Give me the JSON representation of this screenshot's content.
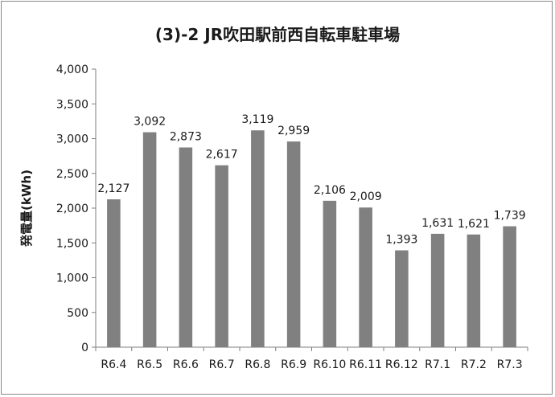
{
  "chart_data": {
    "type": "bar",
    "title": "(3)-2 JR吹田駅前西自転車駐車場",
    "ylabel": "発電量(kWh)",
    "xlabel": "",
    "categories": [
      "R6.4",
      "R6.5",
      "R6.6",
      "R6.7",
      "R6.8",
      "R6.9",
      "R6.10",
      "R6.11",
      "R6.12",
      "R7.1",
      "R7.2",
      "R7.3"
    ],
    "values": [
      2127,
      3092,
      2873,
      2617,
      3119,
      2959,
      2106,
      2009,
      1393,
      1631,
      1621,
      1739
    ],
    "data_labels": [
      "2,127",
      "3,092",
      "2,873",
      "2,617",
      "3,119",
      "2,959",
      "2,106",
      "2,009",
      "1,393",
      "1,631",
      "1,621",
      "1,739"
    ],
    "yticks": [
      0,
      500,
      1000,
      1500,
      2000,
      2500,
      3000,
      3500,
      4000
    ],
    "ytick_labels": [
      "0",
      "500",
      "1,000",
      "1,500",
      "2,000",
      "2,500",
      "3,000",
      "3,500",
      "4,000"
    ],
    "ylim": [
      0,
      4000
    ],
    "grid": false,
    "legend": "none",
    "bar_color": "#808080"
  }
}
